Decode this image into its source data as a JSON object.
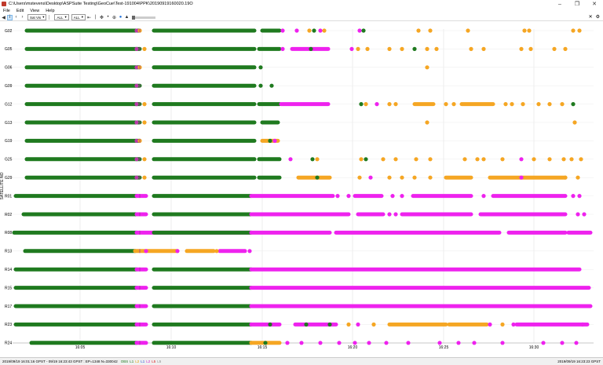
{
  "window": {
    "title": "C:\\Users\\mstevens\\Desktop\\ASPSuite Testing\\GeoCue\\Test-191004\\PPK\\20190919160020.19O"
  },
  "menu": [
    "File",
    "Edit",
    "View",
    "Help"
  ],
  "toolbar": {
    "select_view": "Sat Vis",
    "filter_1": "ALL",
    "filter_2": "ALL"
  },
  "plot": {
    "y_axis_label": "SATELLITE NO",
    "satellites": [
      "G02",
      "G05",
      "G06",
      "G09",
      "G12",
      "G13",
      "G19",
      "G25",
      "G29",
      "R01",
      "R02",
      "R08",
      "R13",
      "R14",
      "R15",
      "R17",
      "R23",
      "R24"
    ],
    "time_ticks": [
      "16:05",
      "16:10",
      "16:15",
      "16:20",
      "16:25",
      "16:30"
    ],
    "colors": {
      "green": "#1f7a1f",
      "orange": "#f5a623",
      "magenta": "#ee22ee",
      "gap_sep": "#b83aa8"
    }
  },
  "status": {
    "left": "2019/09/19 16:01:16 GPST - 09/19 16:23:43 GPST : EP=1348 N=330042",
    "counts": [
      "OBS",
      "L1",
      "L2",
      "L1",
      "L2",
      "L5",
      "L5"
    ],
    "right": "2019/09/19 16:23:23 GPST"
  }
}
